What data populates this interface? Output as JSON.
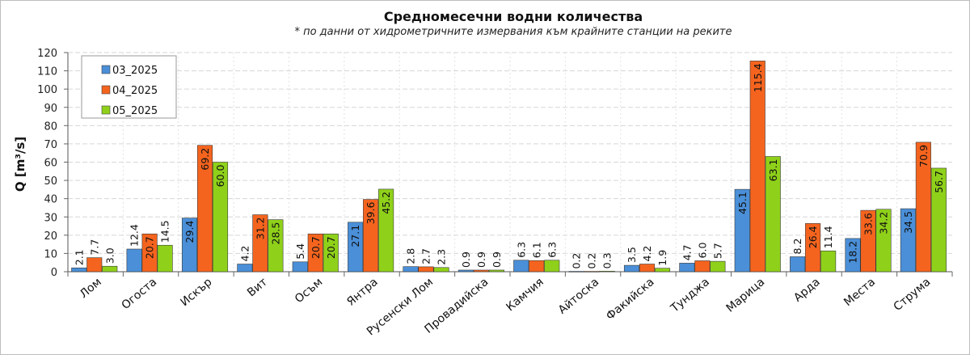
{
  "chart_data": {
    "type": "bar",
    "title": "Средномесечни водни количества",
    "subtitle": "* по данни от хидрометричните измервания към крайните станции на реките",
    "ylabel": "Q [m³/s]",
    "ylim": [
      0,
      120
    ],
    "yticks": [
      0,
      10,
      20,
      30,
      40,
      50,
      60,
      70,
      80,
      90,
      100,
      110,
      120
    ],
    "grid": true,
    "legend_position": "top-left",
    "categories": [
      "Лом",
      "Огоста",
      "Искър",
      "Вит",
      "Осъм",
      "Янтра",
      "Русенски Лом",
      "Провадийска",
      "Камчия",
      "Айтоска",
      "Факийска",
      "Тунджа",
      "Марица",
      "Арда",
      "Места",
      "Струма"
    ],
    "series": [
      {
        "name": "03_2025",
        "color": "#4a8fd8",
        "values": [
          2.1,
          12.4,
          29.4,
          4.2,
          5.4,
          27.1,
          2.8,
          0.9,
          6.3,
          0.2,
          3.5,
          4.7,
          45.1,
          8.2,
          18.2,
          34.5
        ]
      },
      {
        "name": "04_2025",
        "color": "#f5641e",
        "values": [
          7.7,
          20.7,
          69.2,
          31.2,
          20.7,
          39.6,
          2.7,
          0.9,
          6.1,
          0.2,
          4.2,
          6.0,
          115.4,
          26.4,
          33.6,
          70.9
        ]
      },
      {
        "name": "05_2025",
        "color": "#8fd11a",
        "values": [
          3.0,
          14.5,
          60.0,
          28.5,
          20.7,
          45.2,
          2.3,
          0.9,
          6.3,
          0.3,
          1.9,
          5.7,
          63.1,
          11.4,
          34.2,
          56.7
        ]
      }
    ]
  }
}
